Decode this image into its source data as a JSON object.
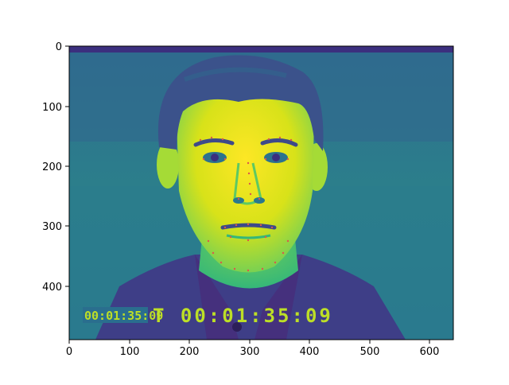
{
  "figure": {
    "y_ticks": [
      "0",
      "100",
      "200",
      "300",
      "400"
    ],
    "x_ticks": [
      "0",
      "100",
      "200",
      "300",
      "400",
      "500",
      "600"
    ],
    "x_range": [
      0,
      640
    ],
    "y_range": [
      490,
      0
    ],
    "y_tick_values": [
      0,
      100,
      200,
      300,
      400
    ],
    "x_tick_values": [
      0,
      100,
      200,
      300,
      400,
      500,
      600
    ]
  },
  "image": {
    "colormap": "viridis",
    "subject": "frontal portrait of a young man with short dark hair wearing a dark collared shirt",
    "timecode_small": "00:01:35:09",
    "timecode_large": "T 00:01:35:09",
    "colors": {
      "background": "#2c7f8b",
      "background_dark": "#355f8c",
      "hair": "#3b528b",
      "face": "#c8e020",
      "face_highlight": "#fde725",
      "shirt": "#3e3e87",
      "shirt_dark": "#472d7b",
      "landmark": "#d9594c",
      "timecode": "#bddf26"
    }
  }
}
